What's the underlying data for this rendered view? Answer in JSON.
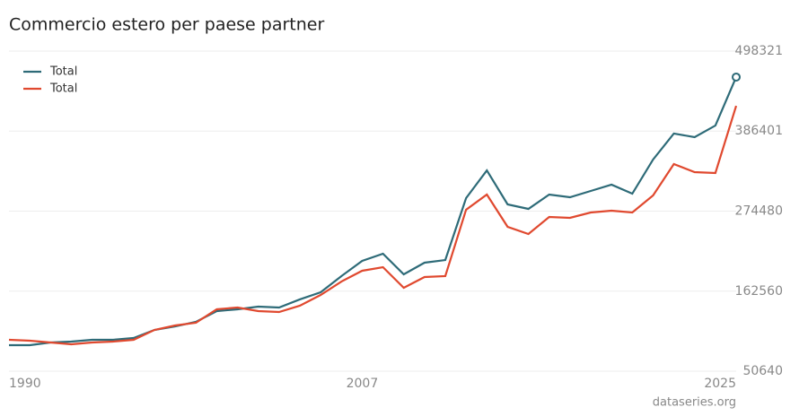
{
  "chart_data": {
    "type": "line",
    "title": "Commercio estero per paese partner",
    "source": "dataseries.org",
    "x": [
      1990,
      1991,
      1992,
      1993,
      1994,
      1995,
      1996,
      1997,
      1998,
      1999,
      2000,
      2001,
      2002,
      2003,
      2004,
      2005,
      2006,
      2007,
      2008,
      2009,
      2010,
      2011,
      2012,
      2013,
      2014,
      2015,
      2016,
      2017,
      2018,
      2019,
      2020,
      2021,
      2022,
      2023,
      2024,
      2025
    ],
    "series": [
      {
        "name": "Total",
        "color": "#2e6b78",
        "values": [
          87000,
          87000,
          90800,
          92000,
          94500,
          94500,
          97000,
          108300,
          113300,
          119600,
          134700,
          137200,
          140900,
          139700,
          151000,
          161000,
          183600,
          204900,
          214900,
          186100,
          202400,
          206100,
          292700,
          331500,
          283900,
          277600,
          297700,
          293900,
          302700,
          311500,
          298900,
          346600,
          383000,
          378000,
          394200,
          462000
        ]
      },
      {
        "name": "Total",
        "color": "#e0492f",
        "values": [
          94500,
          93300,
          90800,
          88300,
          90800,
          92000,
          94500,
          108300,
          114600,
          118400,
          137200,
          139700,
          134700,
          133400,
          142200,
          157200,
          176000,
          191100,
          196100,
          167300,
          182300,
          183600,
          276400,
          297700,
          252500,
          242500,
          266300,
          265100,
          272600,
          275100,
          272600,
          296400,
          340300,
          329000,
          327800,
          421800
        ]
      }
    ],
    "xlim": [
      1990,
      2025
    ],
    "xticks": [
      1990,
      2007,
      2025
    ],
    "ylim": [
      50640,
      498321
    ],
    "yticks": [
      50640,
      162560,
      274480,
      386401,
      498321
    ],
    "grid": true,
    "legend": "top-left"
  }
}
